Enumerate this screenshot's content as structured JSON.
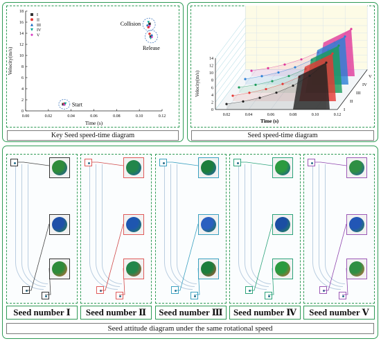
{
  "charts": {
    "left_caption": "Key Seed speed-time diagram",
    "right_caption": "Seed speed-time diagram"
  },
  "chart_data": [
    {
      "type": "scatter",
      "title": "",
      "xlabel": "Time (s)",
      "ylabel": "Velocity(m/s)",
      "xlim": [
        0.0,
        0.12
      ],
      "ylim": [
        0,
        18
      ],
      "x_ticks": [
        "0.00",
        "0.02",
        "0.04",
        "0.06",
        "0.08",
        "0.10",
        "0.12"
      ],
      "y_ticks": [
        "0",
        "2",
        "4",
        "6",
        "8",
        "10",
        "12",
        "14",
        "16",
        "18"
      ],
      "legend_position": "top-left",
      "series": [
        {
          "name": "I",
          "color": "#333333",
          "marker": "square",
          "points": [
            [
              0.033,
              1.2
            ],
            [
              0.109,
              15.7
            ],
            [
              0.11,
              13.4
            ]
          ]
        },
        {
          "name": "II",
          "color": "#e53935",
          "marker": "circle",
          "points": [
            [
              0.034,
              1.3
            ],
            [
              0.108,
              15.1
            ],
            [
              0.109,
              13.9
            ]
          ]
        },
        {
          "name": "III",
          "color": "#1565c0",
          "marker": "triangle-up",
          "points": [
            [
              0.034,
              1.2
            ],
            [
              0.107,
              15.5
            ],
            [
              0.111,
              13.7
            ]
          ]
        },
        {
          "name": "IV",
          "color": "#00a896",
          "marker": "triangle-down",
          "points": [
            [
              0.035,
              1.3
            ],
            [
              0.108,
              16.0
            ],
            [
              0.11,
              13.1
            ]
          ]
        },
        {
          "name": "V",
          "color": "#d63fc4",
          "marker": "diamond",
          "points": [
            [
              0.034,
              1.1
            ],
            [
              0.109,
              15.3
            ],
            [
              0.111,
              13.3
            ]
          ]
        }
      ],
      "annotations": [
        "Collision",
        "Release",
        "Start"
      ]
    },
    {
      "type": "line",
      "title": "",
      "xlabel": "Time (s)",
      "ylabel": "Velocity(m/s)",
      "xlim": [
        0.01,
        0.12
      ],
      "ylim": [
        0,
        14
      ],
      "x_ticks": [
        "0.02",
        "0.04",
        "0.06",
        "0.08",
        "0.10",
        "0.12"
      ],
      "y_ticks": [
        "0",
        "2",
        "4",
        "6",
        "8",
        "10",
        "12",
        "14"
      ],
      "grid": true,
      "series": [
        {
          "name": "I",
          "color": "#222222",
          "x": [
            0.02,
            0.035,
            0.05,
            0.065,
            0.08,
            0.095,
            0.11
          ],
          "values": [
            1.5,
            2.2,
            3.2,
            4.6,
            6.5,
            9.2,
            12.8
          ]
        },
        {
          "name": "II",
          "color": "#e53935",
          "x": [
            0.02,
            0.035,
            0.05,
            0.065,
            0.08,
            0.095,
            0.11
          ],
          "values": [
            1.5,
            2.3,
            3.3,
            4.7,
            6.6,
            9.4,
            13.0
          ]
        },
        {
          "name": "III",
          "color": "#1a9c5b",
          "x": [
            0.02,
            0.035,
            0.05,
            0.065,
            0.08,
            0.095,
            0.11
          ],
          "values": [
            1.5,
            2.2,
            3.2,
            4.6,
            6.5,
            9.3,
            12.9
          ]
        },
        {
          "name": "IV",
          "color": "#2a7fd6",
          "x": [
            0.02,
            0.035,
            0.05,
            0.065,
            0.08,
            0.095,
            0.11
          ],
          "values": [
            1.5,
            2.3,
            3.3,
            4.7,
            6.7,
            9.4,
            13.1
          ]
        },
        {
          "name": "V",
          "color": "#e0399b",
          "x": [
            0.02,
            0.035,
            0.05,
            0.065,
            0.08,
            0.095,
            0.11
          ],
          "values": [
            1.5,
            2.2,
            3.2,
            4.6,
            6.5,
            9.2,
            12.9
          ]
        }
      ],
      "depth_labels": [
        "I",
        "II",
        "III",
        "IV",
        "V"
      ]
    }
  ],
  "seeds": [
    {
      "label": "Seed number Ⅰ",
      "frame": "#333333",
      "line": "#444444",
      "top": "#2e8b3a",
      "bottom": "#1f4fa8",
      "ball3": "#e0623a"
    },
    {
      "label": "Seed number Ⅱ",
      "frame": "#e05a5a",
      "line": "#d04848",
      "top": "#22864a",
      "bottom": "#1e56b0",
      "ball3": "#d8503a"
    },
    {
      "label": "Seed number Ⅲ",
      "frame": "#3aa0c0",
      "line": "#3aa0c0",
      "top": "#1c7d3c",
      "bottom": "#2a5fc0",
      "ball3": "#cc4f38"
    },
    {
      "label": "Seed number Ⅳ",
      "frame": "#2ba37a",
      "line": "#2ba37a",
      "top": "#2b9a3f",
      "bottom": "#1b4ea3",
      "ball3": "#d65a34"
    },
    {
      "label": "Seed number Ⅴ",
      "frame": "#9b59b6",
      "line": "#8e44ad",
      "top": "#2f8f44",
      "bottom": "#2256b5",
      "ball3": "#e06a40"
    }
  ],
  "bottom_caption": "Seed attitude diagram under the same rotational speed"
}
